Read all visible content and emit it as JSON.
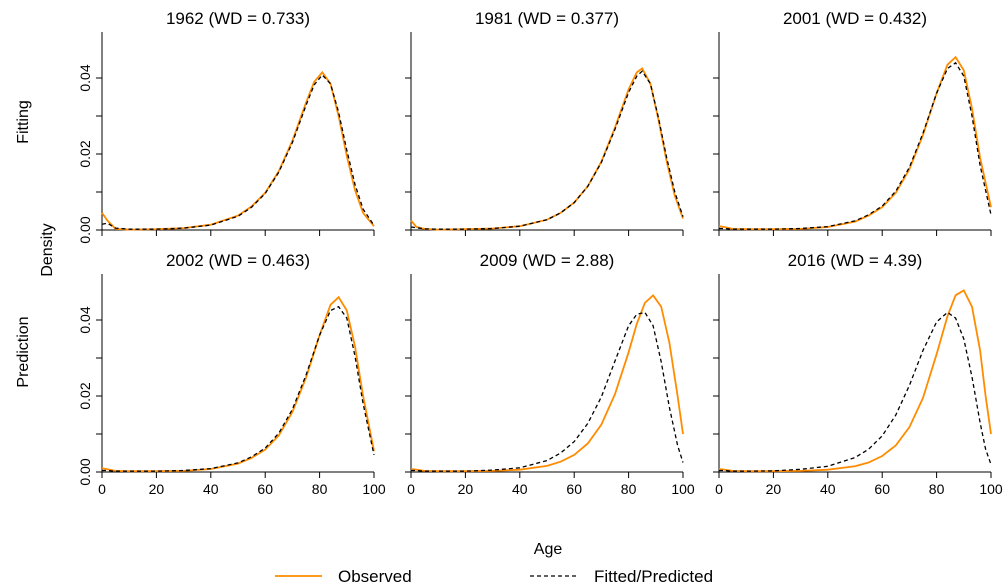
{
  "figure": {
    "row_labels": [
      "Fitting",
      "Prediction"
    ],
    "shared_ylabel": "Density",
    "shared_xlabel": "Age",
    "legend": {
      "items": [
        {
          "label": "Observed",
          "style": "solid",
          "color": "#FF8C00"
        },
        {
          "label": "Fitted/Predicted",
          "style": "dashed",
          "color": "#000000"
        }
      ]
    },
    "colors": {
      "observed": "#FF8C00",
      "fitted": "#000000"
    }
  },
  "chart_data": [
    {
      "type": "line",
      "title": "1962  (WD = 0.733)",
      "row": 0,
      "col": 0,
      "xlim": [
        0,
        100
      ],
      "ylim": [
        0,
        0.05
      ],
      "xticks": [
        "0",
        "20",
        "40",
        "60",
        "80",
        "100"
      ],
      "yticks": [
        "0.00",
        "0.02",
        "0.04"
      ],
      "x": [
        0,
        2,
        5,
        10,
        20,
        30,
        40,
        50,
        55,
        60,
        65,
        70,
        75,
        78,
        81,
        84,
        87,
        90,
        93,
        96,
        100
      ],
      "series": [
        {
          "name": "Observed",
          "values": [
            0.0045,
            0.0025,
            0.0003,
            0.0001,
            0.0002,
            0.0005,
            0.0014,
            0.0038,
            0.0062,
            0.0098,
            0.0155,
            0.0235,
            0.0335,
            0.039,
            0.0415,
            0.0385,
            0.03,
            0.0195,
            0.0105,
            0.0045,
            0.001
          ]
        },
        {
          "name": "Fitted/Predicted",
          "values": [
            0.0015,
            0.0018,
            0.0005,
            0.0002,
            0.0002,
            0.0005,
            0.0013,
            0.0036,
            0.006,
            0.0096,
            0.0152,
            0.023,
            0.0328,
            0.0382,
            0.0408,
            0.0385,
            0.031,
            0.021,
            0.012,
            0.0055,
            0.0012
          ]
        }
      ]
    },
    {
      "type": "line",
      "title": "1981  (WD = 0.377)",
      "row": 0,
      "col": 1,
      "xlim": [
        0,
        100
      ],
      "ylim": [
        0,
        0.05
      ],
      "xticks": [
        "0",
        "20",
        "40",
        "60",
        "80",
        "100"
      ],
      "yticks": [
        "0.00",
        "0.02",
        "0.04"
      ],
      "x": [
        0,
        2,
        5,
        10,
        20,
        30,
        40,
        50,
        55,
        60,
        65,
        70,
        75,
        80,
        83,
        85,
        88,
        91,
        94,
        97,
        100
      ],
      "series": [
        {
          "name": "Observed",
          "values": [
            0.0025,
            0.0008,
            0.0003,
            0.0001,
            0.0002,
            0.0004,
            0.001,
            0.0027,
            0.0045,
            0.0072,
            0.0115,
            0.018,
            0.027,
            0.037,
            0.0415,
            0.0425,
            0.0385,
            0.029,
            0.018,
            0.009,
            0.003
          ]
        },
        {
          "name": "Fitted/Predicted",
          "values": [
            0.0008,
            0.0006,
            0.0003,
            0.0002,
            0.0002,
            0.0004,
            0.001,
            0.0027,
            0.0045,
            0.0072,
            0.0115,
            0.0178,
            0.0265,
            0.0362,
            0.0405,
            0.0418,
            0.0385,
            0.0295,
            0.019,
            0.01,
            0.0035
          ]
        }
      ]
    },
    {
      "type": "line",
      "title": "2001  (WD = 0.432)",
      "row": 0,
      "col": 2,
      "xlim": [
        0,
        100
      ],
      "ylim": [
        0,
        0.05
      ],
      "xticks": [
        "0",
        "20",
        "40",
        "60",
        "80",
        "100"
      ],
      "yticks": [
        "0.00",
        "0.02",
        "0.04"
      ],
      "x": [
        0,
        2,
        5,
        10,
        20,
        30,
        40,
        50,
        55,
        60,
        65,
        70,
        75,
        80,
        84,
        87,
        90,
        93,
        96,
        100
      ],
      "series": [
        {
          "name": "Observed",
          "values": [
            0.001,
            0.0008,
            0.0003,
            0.0002,
            0.0002,
            0.0003,
            0.0008,
            0.0022,
            0.0038,
            0.006,
            0.0098,
            0.016,
            0.025,
            0.036,
            0.0435,
            0.0455,
            0.042,
            0.032,
            0.019,
            0.006
          ]
        },
        {
          "name": "Fitted/Predicted",
          "values": [
            0.0004,
            0.0004,
            0.0002,
            0.0002,
            0.0002,
            0.0004,
            0.0009,
            0.0024,
            0.004,
            0.0063,
            0.0102,
            0.0165,
            0.0255,
            0.036,
            0.0425,
            0.044,
            0.0405,
            0.03,
            0.017,
            0.004
          ]
        }
      ]
    },
    {
      "type": "line",
      "title": "2002  (WD = 0.463)",
      "row": 1,
      "col": 0,
      "xlim": [
        0,
        100
      ],
      "ylim": [
        0,
        0.05
      ],
      "xticks": [
        "0",
        "20",
        "40",
        "60",
        "80",
        "100"
      ],
      "yticks": [
        "0.00",
        "0.02",
        "0.04"
      ],
      "x": [
        0,
        2,
        5,
        10,
        20,
        30,
        40,
        50,
        55,
        60,
        65,
        70,
        75,
        80,
        84,
        87,
        90,
        93,
        96,
        100
      ],
      "series": [
        {
          "name": "Observed",
          "values": [
            0.001,
            0.0007,
            0.0003,
            0.0002,
            0.0002,
            0.0003,
            0.0008,
            0.0022,
            0.0037,
            0.0059,
            0.0096,
            0.0158,
            0.0248,
            0.036,
            0.044,
            0.046,
            0.0425,
            0.033,
            0.02,
            0.0055
          ]
        },
        {
          "name": "Fitted/Predicted",
          "values": [
            0.0004,
            0.0004,
            0.0002,
            0.0002,
            0.0002,
            0.0004,
            0.0009,
            0.0024,
            0.004,
            0.0063,
            0.0102,
            0.0165,
            0.0255,
            0.036,
            0.0425,
            0.0435,
            0.0405,
            0.0305,
            0.018,
            0.0045
          ]
        }
      ]
    },
    {
      "type": "line",
      "title": "2009  (WD = 2.88)",
      "row": 1,
      "col": 1,
      "xlim": [
        0,
        100
      ],
      "ylim": [
        0,
        0.05
      ],
      "xticks": [
        "0",
        "20",
        "40",
        "60",
        "80",
        "100"
      ],
      "yticks": [
        "0.00",
        "0.02",
        "0.04"
      ],
      "x": [
        0,
        2,
        5,
        10,
        20,
        30,
        40,
        50,
        55,
        60,
        65,
        70,
        75,
        80,
        83,
        86,
        89,
        92,
        95,
        98,
        100
      ],
      "series": [
        {
          "name": "Observed",
          "values": [
            0.0008,
            0.0006,
            0.0003,
            0.0002,
            0.0002,
            0.0003,
            0.0006,
            0.0016,
            0.0027,
            0.0045,
            0.0075,
            0.0125,
            0.0205,
            0.0315,
            0.039,
            0.0445,
            0.0465,
            0.0435,
            0.034,
            0.02,
            0.01
          ]
        },
        {
          "name": "Fitted/Predicted",
          "values": [
            0.0004,
            0.0004,
            0.0002,
            0.0002,
            0.0002,
            0.0005,
            0.0011,
            0.003,
            0.005,
            0.008,
            0.0128,
            0.0198,
            0.0292,
            0.0385,
            0.0415,
            0.042,
            0.0385,
            0.029,
            0.017,
            0.007,
            0.0025
          ]
        }
      ]
    },
    {
      "type": "line",
      "title": "2016  (WD = 4.39)",
      "row": 1,
      "col": 2,
      "xlim": [
        0,
        100
      ],
      "ylim": [
        0,
        0.05
      ],
      "xticks": [
        "0",
        "20",
        "40",
        "60",
        "80",
        "100"
      ],
      "yticks": [
        "0.00",
        "0.02",
        "0.04"
      ],
      "x": [
        0,
        2,
        5,
        10,
        20,
        30,
        40,
        50,
        55,
        60,
        65,
        70,
        75,
        80,
        84,
        87,
        90,
        93,
        96,
        98,
        100
      ],
      "series": [
        {
          "name": "Observed",
          "values": [
            0.0008,
            0.0006,
            0.0003,
            0.0002,
            0.0002,
            0.0003,
            0.0006,
            0.0015,
            0.0025,
            0.0042,
            0.007,
            0.0118,
            0.0195,
            0.031,
            0.041,
            0.0465,
            0.0478,
            0.0435,
            0.032,
            0.02,
            0.01
          ]
        },
        {
          "name": "Fitted/Predicted",
          "values": [
            0.0004,
            0.0004,
            0.0002,
            0.0002,
            0.0003,
            0.0007,
            0.0015,
            0.0038,
            0.006,
            0.0095,
            0.015,
            0.0228,
            0.032,
            0.0395,
            0.042,
            0.0405,
            0.035,
            0.025,
            0.013,
            0.006,
            0.002
          ]
        }
      ]
    }
  ]
}
